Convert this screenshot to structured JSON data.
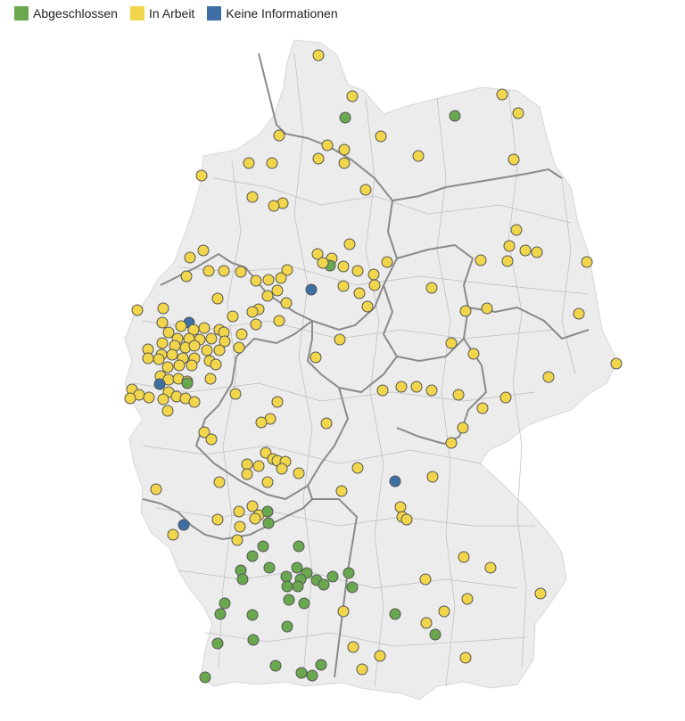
{
  "legend": [
    {
      "label": "Abgeschlossen",
      "color": "#6aa84f",
      "status": "done"
    },
    {
      "label": "In Arbeit",
      "color": "#f1d64b",
      "status": "wip"
    },
    {
      "label": "Keine Informationen",
      "color": "#3d6fa5",
      "status": "none"
    }
  ],
  "map": {
    "land_color": "#ececec",
    "district_border_color": "#b8b8b8",
    "state_border_color": "#8a8a8a",
    "marker_stroke": "#555555"
  }
}
